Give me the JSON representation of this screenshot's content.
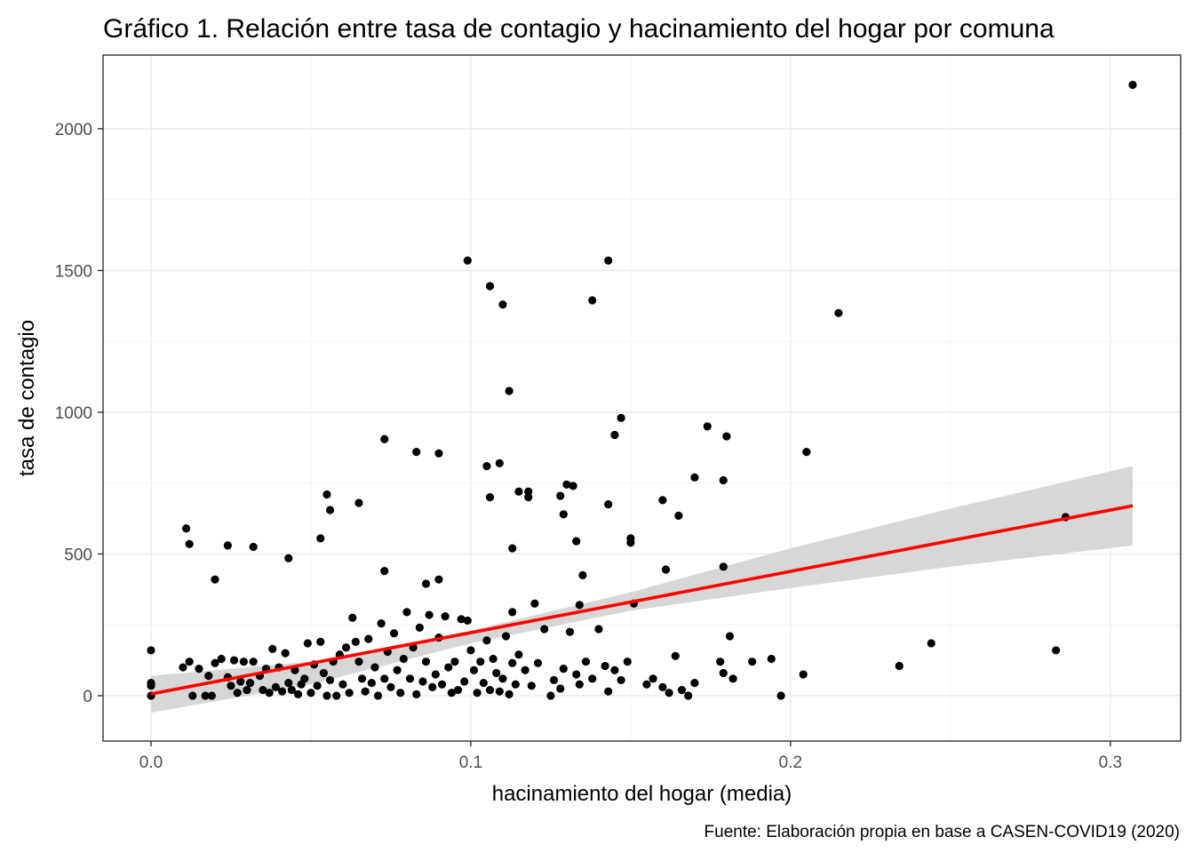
{
  "chart_data": {
    "type": "scatter",
    "title": "Gráfico 1. Relación entre tasa de contagio y hacinamiento del hogar por comuna",
    "xlabel": "hacinamiento del hogar (media)",
    "ylabel": "tasa de contagio",
    "caption": "Fuente: Elaboración propia en base a CASEN-COVID19 (2020)",
    "xlim": [
      -0.015,
      0.322
    ],
    "ylim": [
      -160,
      2260
    ],
    "x_ticks": [
      0.0,
      0.1,
      0.2,
      0.3
    ],
    "x_tick_labels": [
      "0.0",
      "0.1",
      "0.2",
      "0.3"
    ],
    "y_ticks": [
      0,
      500,
      1000,
      1500,
      2000
    ],
    "y_tick_labels": [
      "0",
      "500",
      "1000",
      "1500",
      "2000"
    ],
    "grid": true,
    "colors": {
      "points": "#000000",
      "fit_line": "#ff0000",
      "confidence_band": "#d3d3d3"
    },
    "points": [
      [
        0.0,
        160
      ],
      [
        0.0,
        45
      ],
      [
        0.0,
        35
      ],
      [
        0.0,
        0
      ],
      [
        0.011,
        590
      ],
      [
        0.012,
        535
      ],
      [
        0.02,
        410
      ],
      [
        0.024,
        530
      ],
      [
        0.032,
        525
      ],
      [
        0.043,
        485
      ],
      [
        0.01,
        100
      ],
      [
        0.012,
        120
      ],
      [
        0.013,
        0
      ],
      [
        0.015,
        95
      ],
      [
        0.017,
        0
      ],
      [
        0.018,
        70
      ],
      [
        0.019,
        0
      ],
      [
        0.02,
        115
      ],
      [
        0.022,
        130
      ],
      [
        0.024,
        65
      ],
      [
        0.025,
        35
      ],
      [
        0.026,
        125
      ],
      [
        0.027,
        10
      ],
      [
        0.028,
        50
      ],
      [
        0.029,
        120
      ],
      [
        0.03,
        20
      ],
      [
        0.031,
        45
      ],
      [
        0.032,
        120
      ],
      [
        0.034,
        70
      ],
      [
        0.035,
        20
      ],
      [
        0.036,
        95
      ],
      [
        0.037,
        10
      ],
      [
        0.038,
        165
      ],
      [
        0.039,
        30
      ],
      [
        0.04,
        100
      ],
      [
        0.041,
        15
      ],
      [
        0.042,
        150
      ],
      [
        0.043,
        45
      ],
      [
        0.044,
        20
      ],
      [
        0.045,
        90
      ],
      [
        0.046,
        5
      ],
      [
        0.047,
        40
      ],
      [
        0.048,
        60
      ],
      [
        0.049,
        185
      ],
      [
        0.05,
        10
      ],
      [
        0.051,
        110
      ],
      [
        0.052,
        35
      ],
      [
        0.053,
        190
      ],
      [
        0.054,
        80
      ],
      [
        0.055,
        0
      ],
      [
        0.056,
        55
      ],
      [
        0.057,
        120
      ],
      [
        0.058,
        0
      ],
      [
        0.059,
        145
      ],
      [
        0.06,
        40
      ],
      [
        0.061,
        170
      ],
      [
        0.062,
        10
      ],
      [
        0.063,
        275
      ],
      [
        0.064,
        190
      ],
      [
        0.065,
        120
      ],
      [
        0.066,
        60
      ],
      [
        0.067,
        15
      ],
      [
        0.068,
        200
      ],
      [
        0.069,
        45
      ],
      [
        0.07,
        100
      ],
      [
        0.071,
        0
      ],
      [
        0.072,
        255
      ],
      [
        0.073,
        60
      ],
      [
        0.074,
        155
      ],
      [
        0.075,
        30
      ],
      [
        0.076,
        220
      ],
      [
        0.077,
        90
      ],
      [
        0.078,
        10
      ],
      [
        0.079,
        130
      ],
      [
        0.08,
        295
      ],
      [
        0.081,
        60
      ],
      [
        0.082,
        170
      ],
      [
        0.083,
        5
      ],
      [
        0.084,
        240
      ],
      [
        0.085,
        50
      ],
      [
        0.086,
        120
      ],
      [
        0.087,
        285
      ],
      [
        0.088,
        30
      ],
      [
        0.089,
        75
      ],
      [
        0.09,
        205
      ],
      [
        0.091,
        40
      ],
      [
        0.092,
        280
      ],
      [
        0.093,
        100
      ],
      [
        0.094,
        10
      ],
      [
        0.095,
        120
      ],
      [
        0.096,
        20
      ],
      [
        0.097,
        270
      ],
      [
        0.098,
        50
      ],
      [
        0.099,
        265
      ],
      [
        0.1,
        160
      ],
      [
        0.101,
        90
      ],
      [
        0.102,
        10
      ],
      [
        0.103,
        120
      ],
      [
        0.104,
        45
      ],
      [
        0.105,
        195
      ],
      [
        0.106,
        20
      ],
      [
        0.107,
        130
      ],
      [
        0.108,
        80
      ],
      [
        0.109,
        15
      ],
      [
        0.11,
        60
      ],
      [
        0.111,
        210
      ],
      [
        0.112,
        5
      ],
      [
        0.113,
        115
      ],
      [
        0.114,
        40
      ],
      [
        0.115,
        145
      ],
      [
        0.117,
        90
      ],
      [
        0.119,
        35
      ],
      [
        0.121,
        115
      ],
      [
        0.123,
        235
      ],
      [
        0.125,
        0
      ],
      [
        0.126,
        55
      ],
      [
        0.128,
        25
      ],
      [
        0.129,
        95
      ],
      [
        0.131,
        225
      ],
      [
        0.133,
        75
      ],
      [
        0.134,
        40
      ],
      [
        0.136,
        120
      ],
      [
        0.138,
        60
      ],
      [
        0.14,
        235
      ],
      [
        0.142,
        105
      ],
      [
        0.143,
        15
      ],
      [
        0.145,
        90
      ],
      [
        0.147,
        55
      ],
      [
        0.149,
        120
      ],
      [
        0.155,
        40
      ],
      [
        0.157,
        60
      ],
      [
        0.16,
        30
      ],
      [
        0.162,
        10
      ],
      [
        0.164,
        140
      ],
      [
        0.166,
        20
      ],
      [
        0.168,
        0
      ],
      [
        0.17,
        45
      ],
      [
        0.178,
        120
      ],
      [
        0.179,
        80
      ],
      [
        0.182,
        60
      ],
      [
        0.188,
        120
      ],
      [
        0.194,
        130
      ],
      [
        0.197,
        0
      ],
      [
        0.204,
        75
      ],
      [
        0.234,
        105
      ],
      [
        0.244,
        185
      ],
      [
        0.283,
        160
      ],
      [
        0.286,
        630
      ],
      [
        0.055,
        710
      ],
      [
        0.056,
        655
      ],
      [
        0.053,
        555
      ],
      [
        0.065,
        680
      ],
      [
        0.073,
        905
      ],
      [
        0.073,
        440
      ],
      [
        0.083,
        860
      ],
      [
        0.086,
        395
      ],
      [
        0.09,
        855
      ],
      [
        0.09,
        410
      ],
      [
        0.099,
        1535
      ],
      [
        0.105,
        810
      ],
      [
        0.106,
        1445
      ],
      [
        0.106,
        700
      ],
      [
        0.109,
        820
      ],
      [
        0.11,
        1380
      ],
      [
        0.112,
        1075
      ],
      [
        0.113,
        295
      ],
      [
        0.113,
        520
      ],
      [
        0.115,
        720
      ],
      [
        0.118,
        720
      ],
      [
        0.118,
        700
      ],
      [
        0.12,
        325
      ],
      [
        0.128,
        705
      ],
      [
        0.129,
        640
      ],
      [
        0.13,
        745
      ],
      [
        0.132,
        740
      ],
      [
        0.133,
        545
      ],
      [
        0.134,
        320
      ],
      [
        0.135,
        425
      ],
      [
        0.138,
        1395
      ],
      [
        0.143,
        1535
      ],
      [
        0.143,
        675
      ],
      [
        0.145,
        920
      ],
      [
        0.147,
        980
      ],
      [
        0.15,
        540
      ],
      [
        0.15,
        555
      ],
      [
        0.151,
        325
      ],
      [
        0.16,
        690
      ],
      [
        0.161,
        445
      ],
      [
        0.165,
        635
      ],
      [
        0.17,
        770
      ],
      [
        0.174,
        950
      ],
      [
        0.179,
        455
      ],
      [
        0.179,
        760
      ],
      [
        0.18,
        915
      ],
      [
        0.181,
        210
      ],
      [
        0.205,
        860
      ],
      [
        0.215,
        1350
      ],
      [
        0.307,
        2155
      ]
    ],
    "fit": {
      "x": [
        0.0,
        0.307
      ],
      "y": [
        6,
        670
      ]
    },
    "band": {
      "x": [
        0.0,
        0.05,
        0.1,
        0.15,
        0.2,
        0.25,
        0.307
      ],
      "upper": [
        70,
        120,
        230,
        365,
        520,
        660,
        810
      ],
      "lower": [
        -60,
        40,
        185,
        300,
        380,
        455,
        530
      ]
    }
  }
}
